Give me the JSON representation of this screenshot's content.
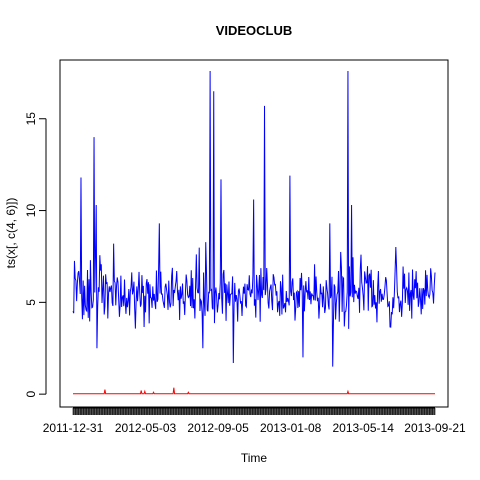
{
  "chart_data": {
    "type": "line",
    "title": "VIDEOCLUB",
    "xlabel": "Time",
    "ylabel": "ts(x[, c(4, 6)])",
    "y_ticks": [
      0,
      5,
      10,
      15
    ],
    "ylim": [
      -0.7,
      18.2
    ],
    "n_points": 500,
    "x_tick_labels": [
      "2011-12-31",
      "2012-05-03",
      "2012-09-05",
      "2013-01-08",
      "2013-05-14",
      "2013-09-21"
    ],
    "x_tick_label_positions": [
      1,
      101,
      201,
      301,
      401,
      500
    ],
    "grid": false,
    "legend": "none",
    "series": [
      {
        "color": "#0000FF",
        "baseline": 5.4,
        "noise": 1.2,
        "min": 1.5,
        "peaks": [
          [
            8,
            6.6
          ],
          [
            12,
            11.8
          ],
          [
            25,
            7.3
          ],
          [
            30,
            14.0
          ],
          [
            33,
            10.3
          ],
          [
            57,
            8.2
          ],
          [
            120,
            9.3
          ],
          [
            180,
            12.5
          ],
          [
            190,
            17.6
          ],
          [
            195,
            16.5
          ],
          [
            205,
            11.7
          ],
          [
            250,
            10.6
          ],
          [
            265,
            15.7
          ],
          [
            300,
            11.9
          ],
          [
            355,
            9.3
          ],
          [
            380,
            17.6
          ],
          [
            385,
            10.3
          ],
          [
            398,
            7.6
          ]
        ],
        "dips": [
          [
            34,
            2.5
          ],
          [
            180,
            2.5
          ],
          [
            222,
            1.7
          ],
          [
            318,
            2.0
          ],
          [
            359,
            1.5
          ]
        ]
      },
      {
        "color": "#FF0000",
        "baseline": 0.02,
        "peaks": [
          [
            45,
            0.25
          ],
          [
            95,
            0.2
          ],
          [
            100,
            0.15
          ],
          [
            112,
            0.1
          ],
          [
            140,
            0.35
          ],
          [
            160,
            0.1
          ],
          [
            380,
            0.15
          ]
        ]
      }
    ]
  }
}
